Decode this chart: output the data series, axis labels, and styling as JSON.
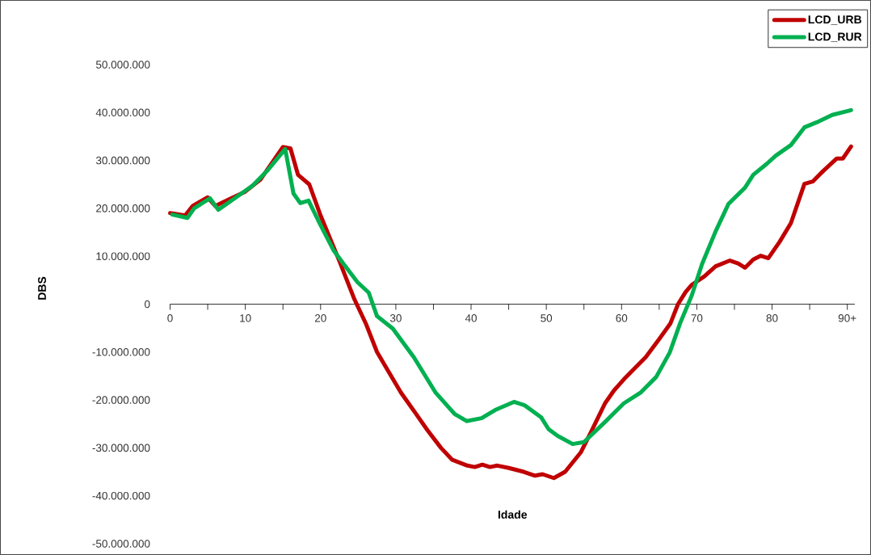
{
  "chart_data": {
    "type": "line",
    "xlabel": "Idade",
    "ylabel": "DBS",
    "legend": "top right",
    "xlim": [
      0,
      91
    ],
    "ylim": [
      -50000000,
      50000000
    ],
    "xticks": [
      0,
      {
        "value": 5,
        "label": null
      },
      10,
      {
        "value": 15,
        "label": null
      },
      20,
      {
        "value": 25,
        "label": null
      },
      30,
      {
        "value": 35,
        "label": null
      },
      40,
      {
        "value": 45,
        "label": null
      },
      50,
      {
        "value": 55,
        "label": null
      },
      60,
      {
        "value": 65,
        "label": null
      },
      70,
      {
        "value": 75,
        "label": null
      },
      80,
      {
        "value": 85,
        "label": null
      },
      {
        "value": 90,
        "label": "90+"
      }
    ],
    "yticks": [
      {
        "value": -50000000,
        "label": "-50.000.000"
      },
      {
        "value": -40000000,
        "label": "-40.000.000"
      },
      {
        "value": -30000000,
        "label": "-30.000.000"
      },
      {
        "value": -20000000,
        "label": "-20.000.000"
      },
      {
        "value": -10000000,
        "label": "-10.000.000"
      },
      0,
      {
        "value": 10000000,
        "label": "10.000.000"
      },
      {
        "value": 20000000,
        "label": "20.000.000"
      },
      {
        "value": 30000000,
        "label": "30.000.000"
      },
      {
        "value": 40000000,
        "label": "40.000.000"
      },
      {
        "value": 50000000,
        "label": "50.000.000"
      }
    ],
    "series": [
      {
        "name": "LCD_URB",
        "color": "#c00000",
        "x": [
          0,
          2,
          3,
          5,
          6,
          8,
          10,
          12,
          15,
          16,
          17,
          18.5,
          20,
          22.5,
          24.5,
          26,
          27.5,
          29,
          30.7,
          32.5,
          34.2,
          36,
          37.5,
          39.5,
          40.5,
          41.5,
          42.5,
          43.5,
          45,
          47,
          48.5,
          49.5,
          51,
          52.5,
          54.6,
          56,
          57.8,
          59,
          60.3,
          62,
          63.2,
          65,
          66.5,
          67.5,
          68.5,
          69.3,
          71,
          72.5,
          74.4,
          75.5,
          76.4,
          77.5,
          78.5,
          79.5,
          81,
          82.5,
          84.3,
          85.4,
          86.8,
          88.6,
          89.4,
          90.5
        ],
        "values": [
          19000000,
          18500000,
          20500000,
          22300000,
          20500000,
          22000000,
          23500000,
          26000000,
          32800000,
          32500000,
          27000000,
          25000000,
          18500000,
          9000000,
          1000000,
          -4000000,
          -10000000,
          -14000000,
          -18500000,
          -22500000,
          -26300000,
          -30000000,
          -32500000,
          -33700000,
          -34000000,
          -33500000,
          -34000000,
          -33700000,
          -34200000,
          -35000000,
          -35800000,
          -35500000,
          -36300000,
          -35000000,
          -30900000,
          -26500000,
          -20700000,
          -18000000,
          -15700000,
          -13000000,
          -11100000,
          -7300000,
          -4000000,
          0,
          2500000,
          4000000,
          5800000,
          7900000,
          9100000,
          8500000,
          7600000,
          9300000,
          10100000,
          9600000,
          13000000,
          16900000,
          25100000,
          25600000,
          27800000,
          30400000,
          30400000,
          32900000
        ]
      },
      {
        "name": "LCD_RUR",
        "color": "#00b050",
        "x": [
          0.3,
          2.3,
          3.2,
          5.3,
          6.4,
          8.5,
          11,
          13,
          15.3,
          16.4,
          17.3,
          18.4,
          20,
          21.7,
          23,
          24.9,
          26.4,
          27.5,
          29.6,
          32.4,
          35.3,
          37.8,
          39.4,
          41.4,
          43.2,
          45.7,
          47.1,
          49.3,
          50.3,
          51.5,
          53.5,
          55,
          57.8,
          60.3,
          62.5,
          64.6,
          66.4,
          67.8,
          69.3,
          70.7,
          72.5,
          74.2,
          76.4,
          77.5,
          79.3,
          80.5,
          82.5,
          84.3,
          86,
          88,
          90.5
        ],
        "values": [
          18700000,
          18000000,
          20000000,
          22100000,
          19700000,
          22000000,
          24800000,
          28000000,
          32400000,
          23100000,
          21100000,
          21600000,
          16500000,
          11300000,
          8500000,
          4600000,
          2400000,
          -2500000,
          -5100000,
          -11100000,
          -18500000,
          -22900000,
          -24400000,
          -23800000,
          -22100000,
          -20400000,
          -21100000,
          -23600000,
          -26100000,
          -27500000,
          -29200000,
          -28800000,
          -24600000,
          -20700000,
          -18500000,
          -15200000,
          -10100000,
          -3900000,
          1700000,
          8400000,
          15200000,
          20900000,
          24300000,
          27000000,
          29300000,
          31000000,
          33200000,
          36900000,
          38000000,
          39500000,
          40500000
        ]
      }
    ]
  }
}
